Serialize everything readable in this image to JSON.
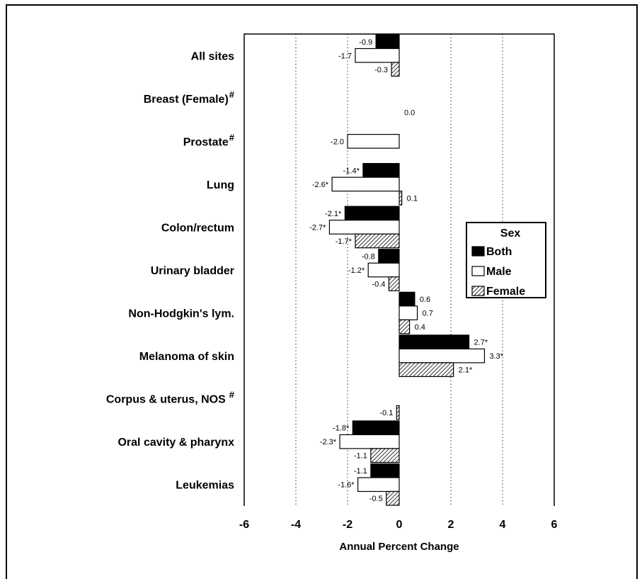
{
  "chart_data": {
    "type": "bar",
    "orientation": "horizontal",
    "xlabel": "Annual Percent Change",
    "xlim": [
      -6,
      6
    ],
    "xticks": [
      "-6",
      "-4",
      "-2",
      "0",
      "2",
      "4",
      "6"
    ],
    "grid": "dotted vertical at ±2, ±4",
    "legend": {
      "title": "Sex",
      "placement": "right",
      "items": [
        {
          "name": "Both",
          "fill": "#000000"
        },
        {
          "name": "Male",
          "fill": "#ffffff"
        },
        {
          "name": "Female",
          "fill": "hatched"
        }
      ]
    },
    "categories": [
      {
        "label": "All sites",
        "note": ""
      },
      {
        "label": "Breast (Female)",
        "note": "#"
      },
      {
        "label": "Prostate",
        "note": "#"
      },
      {
        "label": "Lung",
        "note": ""
      },
      {
        "label": "Colon/rectum",
        "note": ""
      },
      {
        "label": "Urinary bladder",
        "note": ""
      },
      {
        "label": "Non-Hodgkin's lym.",
        "note": ""
      },
      {
        "label": "Melanoma of skin",
        "note": ""
      },
      {
        "label": "Corpus & uterus, NOS",
        "note": "#"
      },
      {
        "label": "Oral cavity & pharynx",
        "note": ""
      },
      {
        "label": "Leukemias",
        "note": ""
      }
    ],
    "series": [
      {
        "name": "Both",
        "values": [
          -0.9,
          null,
          null,
          -1.4,
          -2.1,
          -0.8,
          0.6,
          2.7,
          null,
          -1.8,
          -1.1
        ],
        "labels": [
          "-0.9",
          "",
          "",
          "-1.4*",
          "-2.1*",
          "-0.8",
          "0.6",
          "2.7*",
          "",
          "-1.8*",
          "-1.1"
        ]
      },
      {
        "name": "Male",
        "values": [
          -1.7,
          null,
          -2.0,
          -2.6,
          -2.7,
          -1.2,
          0.7,
          3.3,
          null,
          -2.3,
          -1.6
        ],
        "labels": [
          "-1.7",
          "",
          "-2.0",
          "-2.6*",
          "-2.7*",
          "-1.2*",
          "0.7",
          "3.3*",
          "",
          "-2.3*",
          "-1.6*"
        ]
      },
      {
        "name": "Female",
        "values": [
          -0.3,
          0.0,
          null,
          0.1,
          -1.7,
          -0.4,
          0.4,
          2.1,
          -0.1,
          -1.1,
          -0.5
        ],
        "labels": [
          "-0.3",
          "0.0",
          "",
          "0.1",
          "-1.7*",
          "-0.4",
          "0.4",
          "2.1*",
          "-0.1",
          "-1.1",
          "-0.5"
        ]
      }
    ]
  }
}
